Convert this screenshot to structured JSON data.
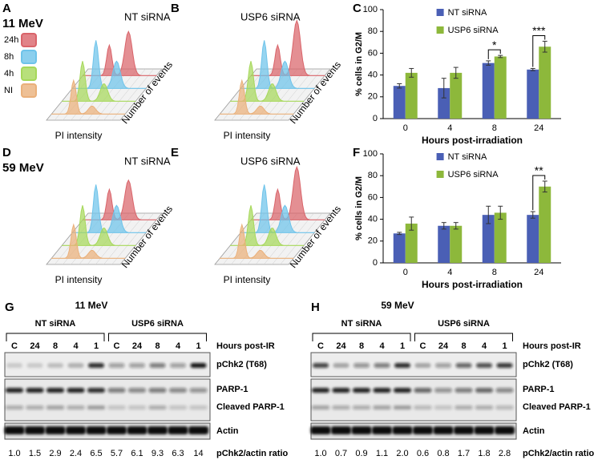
{
  "chart_data": [
    {
      "type": "bar",
      "panel": "C",
      "categories": [
        "0",
        "4",
        "8",
        "24"
      ],
      "series": [
        {
          "name": "NT siRNA",
          "color": "#4a5fb5",
          "values": [
            30,
            28,
            51,
            45
          ],
          "errors": [
            2,
            9,
            2,
            1
          ]
        },
        {
          "name": "USP6 siRNA",
          "color": "#8db83b",
          "values": [
            42,
            42,
            57,
            66
          ],
          "errors": [
            4,
            5,
            1,
            5
          ]
        }
      ],
      "ylim": [
        0,
        100
      ],
      "yticks": [
        0,
        20,
        40,
        60,
        80,
        100
      ],
      "grid": false,
      "legend": "upper left",
      "ylabel": "% cells in G2/M",
      "xlabel": "Hours post-irradiation",
      "annotations": [
        {
          "x": "8",
          "text": "*"
        },
        {
          "x": "24",
          "text": "***"
        }
      ]
    },
    {
      "type": "bar",
      "panel": "F",
      "categories": [
        "0",
        "4",
        "8",
        "24"
      ],
      "series": [
        {
          "name": "NT siRNA",
          "color": "#4a5fb5",
          "values": [
            27,
            34,
            44,
            44
          ],
          "errors": [
            1,
            3,
            8,
            3
          ]
        },
        {
          "name": "USP6 siRNA",
          "color": "#8db83b",
          "values": [
            36,
            34,
            46,
            70
          ],
          "errors": [
            6,
            3,
            6,
            5
          ]
        }
      ],
      "ylim": [
        0,
        100
      ],
      "yticks": [
        0,
        20,
        40,
        60,
        80,
        100
      ],
      "grid": false,
      "legend": "upper left",
      "ylabel": "% cells in G2/M",
      "xlabel": "Hours post-irradiation",
      "annotations": [
        {
          "x": "24",
          "text": "**"
        }
      ]
    }
  ],
  "histograms": {
    "x_label": "PI intensity",
    "y_label": "Number of events",
    "series": [
      {
        "name": "24h",
        "color": "#d9646a"
      },
      {
        "name": "8h",
        "color": "#6ec3ea"
      },
      {
        "name": "4h",
        "color": "#a6d85a"
      },
      {
        "name": "NI",
        "color": "#eab07a"
      }
    ],
    "panels": [
      {
        "panel": "A",
        "energy": "11 MeV",
        "condition": "NT siRNA"
      },
      {
        "panel": "B",
        "condition": "USP6 siRNA"
      },
      {
        "panel": "D",
        "energy": "59 MeV",
        "condition": "NT siRNA"
      },
      {
        "panel": "E",
        "condition": "USP6 siRNA"
      }
    ]
  },
  "blots": [
    {
      "panel": "G",
      "energy": "11 MeV",
      "groups": [
        "NT siRNA",
        "USP6 siRNA"
      ],
      "lanes": [
        "C",
        "24",
        "8",
        "4",
        "1",
        "C",
        "24",
        "8",
        "4",
        "1"
      ],
      "lanes_title": "Hours post-IR",
      "rows": [
        "pChk2 (T68)",
        "PARP-1",
        "Cleaved PARP-1",
        "Actin"
      ],
      "ratios": [
        "1.0",
        "1.5",
        "2.9",
        "2.4",
        "6.5",
        "5.7",
        "6.1",
        "9.3",
        "6.3",
        "14"
      ],
      "ratio_label": "pChk2/actin ratio"
    },
    {
      "panel": "H",
      "energy": "59 MeV",
      "groups": [
        "NT siRNA",
        "USP6 siRNA"
      ],
      "lanes": [
        "C",
        "24",
        "8",
        "4",
        "1",
        "C",
        "24",
        "8",
        "4",
        "1"
      ],
      "lanes_title": "Hours post-IR",
      "rows": [
        "pChk2 (T68)",
        "PARP-1",
        "Cleaved PARP-1",
        "Actin"
      ],
      "ratios": [
        "1.0",
        "0.7",
        "0.9",
        "1.1",
        "2.0",
        "0.6",
        "0.8",
        "1.7",
        "1.8",
        "2.8"
      ],
      "ratio_label": "pChk2/actin ratio"
    }
  ]
}
